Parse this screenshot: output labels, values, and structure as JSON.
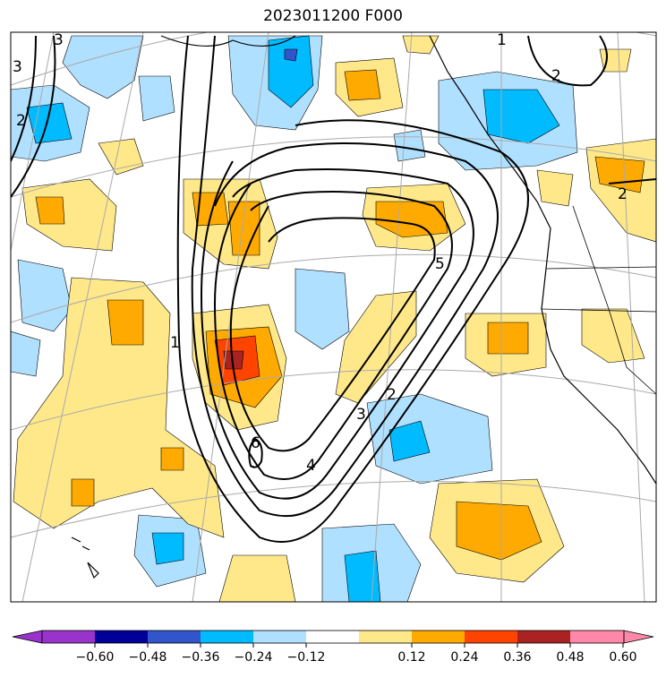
{
  "title": "2023011200 F000",
  "colors": {
    "neg_060_below": "#9933cc",
    "neg_060_048": "#000099",
    "neg_048_036": "#3355cc",
    "neg_036_024": "#00bbff",
    "neg_024_012": "#b0e0ff",
    "neutral": "#ffffff",
    "pos_012_024": "#ffe88a",
    "pos_024_036": "#ffaa00",
    "pos_036_048": "#ff4400",
    "pos_048_060": "#aa2222",
    "pos_060_above": "#ff88aa",
    "grid": "#aaaaaa",
    "coast": "#000000",
    "contour": "#000000"
  },
  "colorbar": {
    "ticks": [
      "−0.60",
      "−0.48",
      "−0.36",
      "−0.24",
      "−0.12",
      "0.12",
      "0.24",
      "0.36",
      "0.48",
      "0.60"
    ]
  },
  "contours": {
    "labels": [
      "2",
      "3",
      "4",
      "5",
      "6",
      "2",
      "3",
      "2",
      "1",
      "1",
      "2",
      "3"
    ]
  },
  "icons": {
    "colorbar-left-arrow": "triangle-left",
    "colorbar-right-arrow": "triangle-right"
  }
}
